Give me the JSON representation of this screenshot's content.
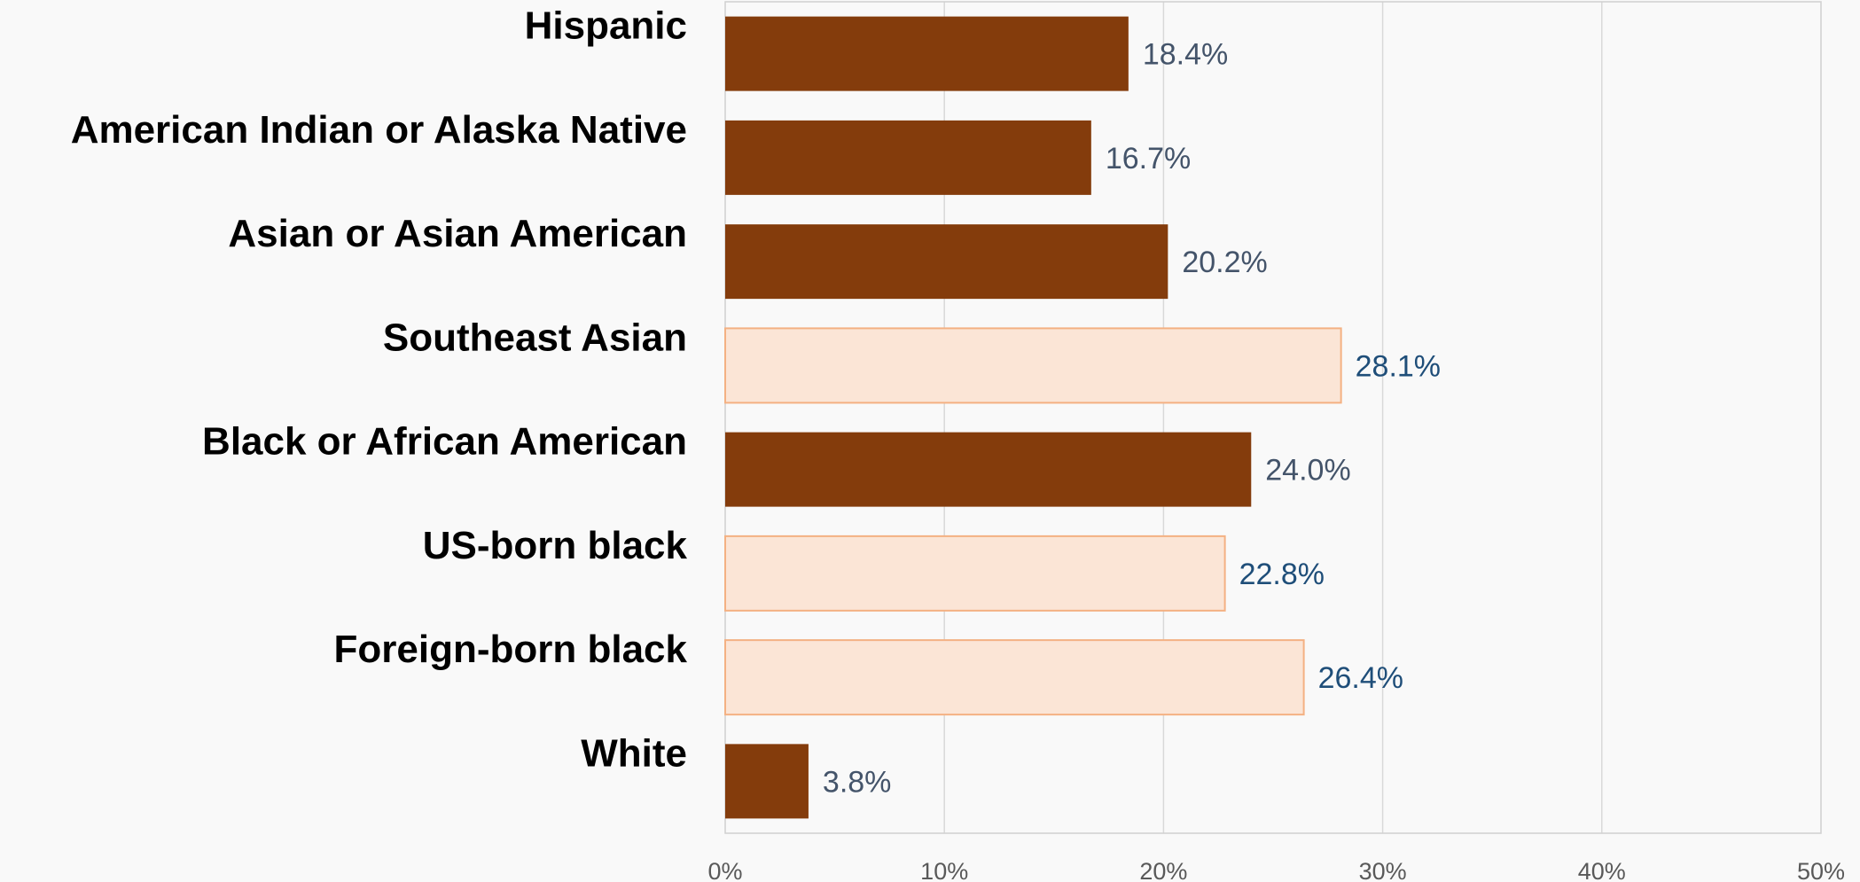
{
  "chart_data": {
    "type": "bar",
    "orientation": "horizontal",
    "categories": [
      "Hispanic",
      "American Indian or Alaska Native",
      "Asian or Asian American",
      "Southeast Asian",
      "Black or African American",
      "US-born black",
      "Foreign-born black",
      "White"
    ],
    "values": [
      18.4,
      16.7,
      20.2,
      28.1,
      24.0,
      22.8,
      26.4,
      3.8
    ],
    "value_labels": [
      "18.4%",
      "16.7%",
      "20.2%",
      "28.1%",
      "24.0%",
      "22.8%",
      "26.4%",
      "3.8%"
    ],
    "highlight": [
      false,
      false,
      false,
      true,
      false,
      true,
      true,
      false
    ],
    "title": "",
    "xlabel": "",
    "ylabel": "",
    "xlim": [
      0,
      50
    ],
    "xticks": [
      0,
      10,
      20,
      30,
      40,
      50
    ],
    "xtick_labels": [
      "0%",
      "10%",
      "20%",
      "30%",
      "40%",
      "50%"
    ],
    "grid": "vertical",
    "legend": "none",
    "colors": {
      "main_bar": "#843c0c",
      "sub_bar_fill": "#fbe5d6",
      "sub_bar_stroke": "#f4b183",
      "main_value_text": "#44546a",
      "sub_value_text": "#1f4e79",
      "gridline": "#d9d9d9",
      "background": "#f9f9f9"
    }
  }
}
